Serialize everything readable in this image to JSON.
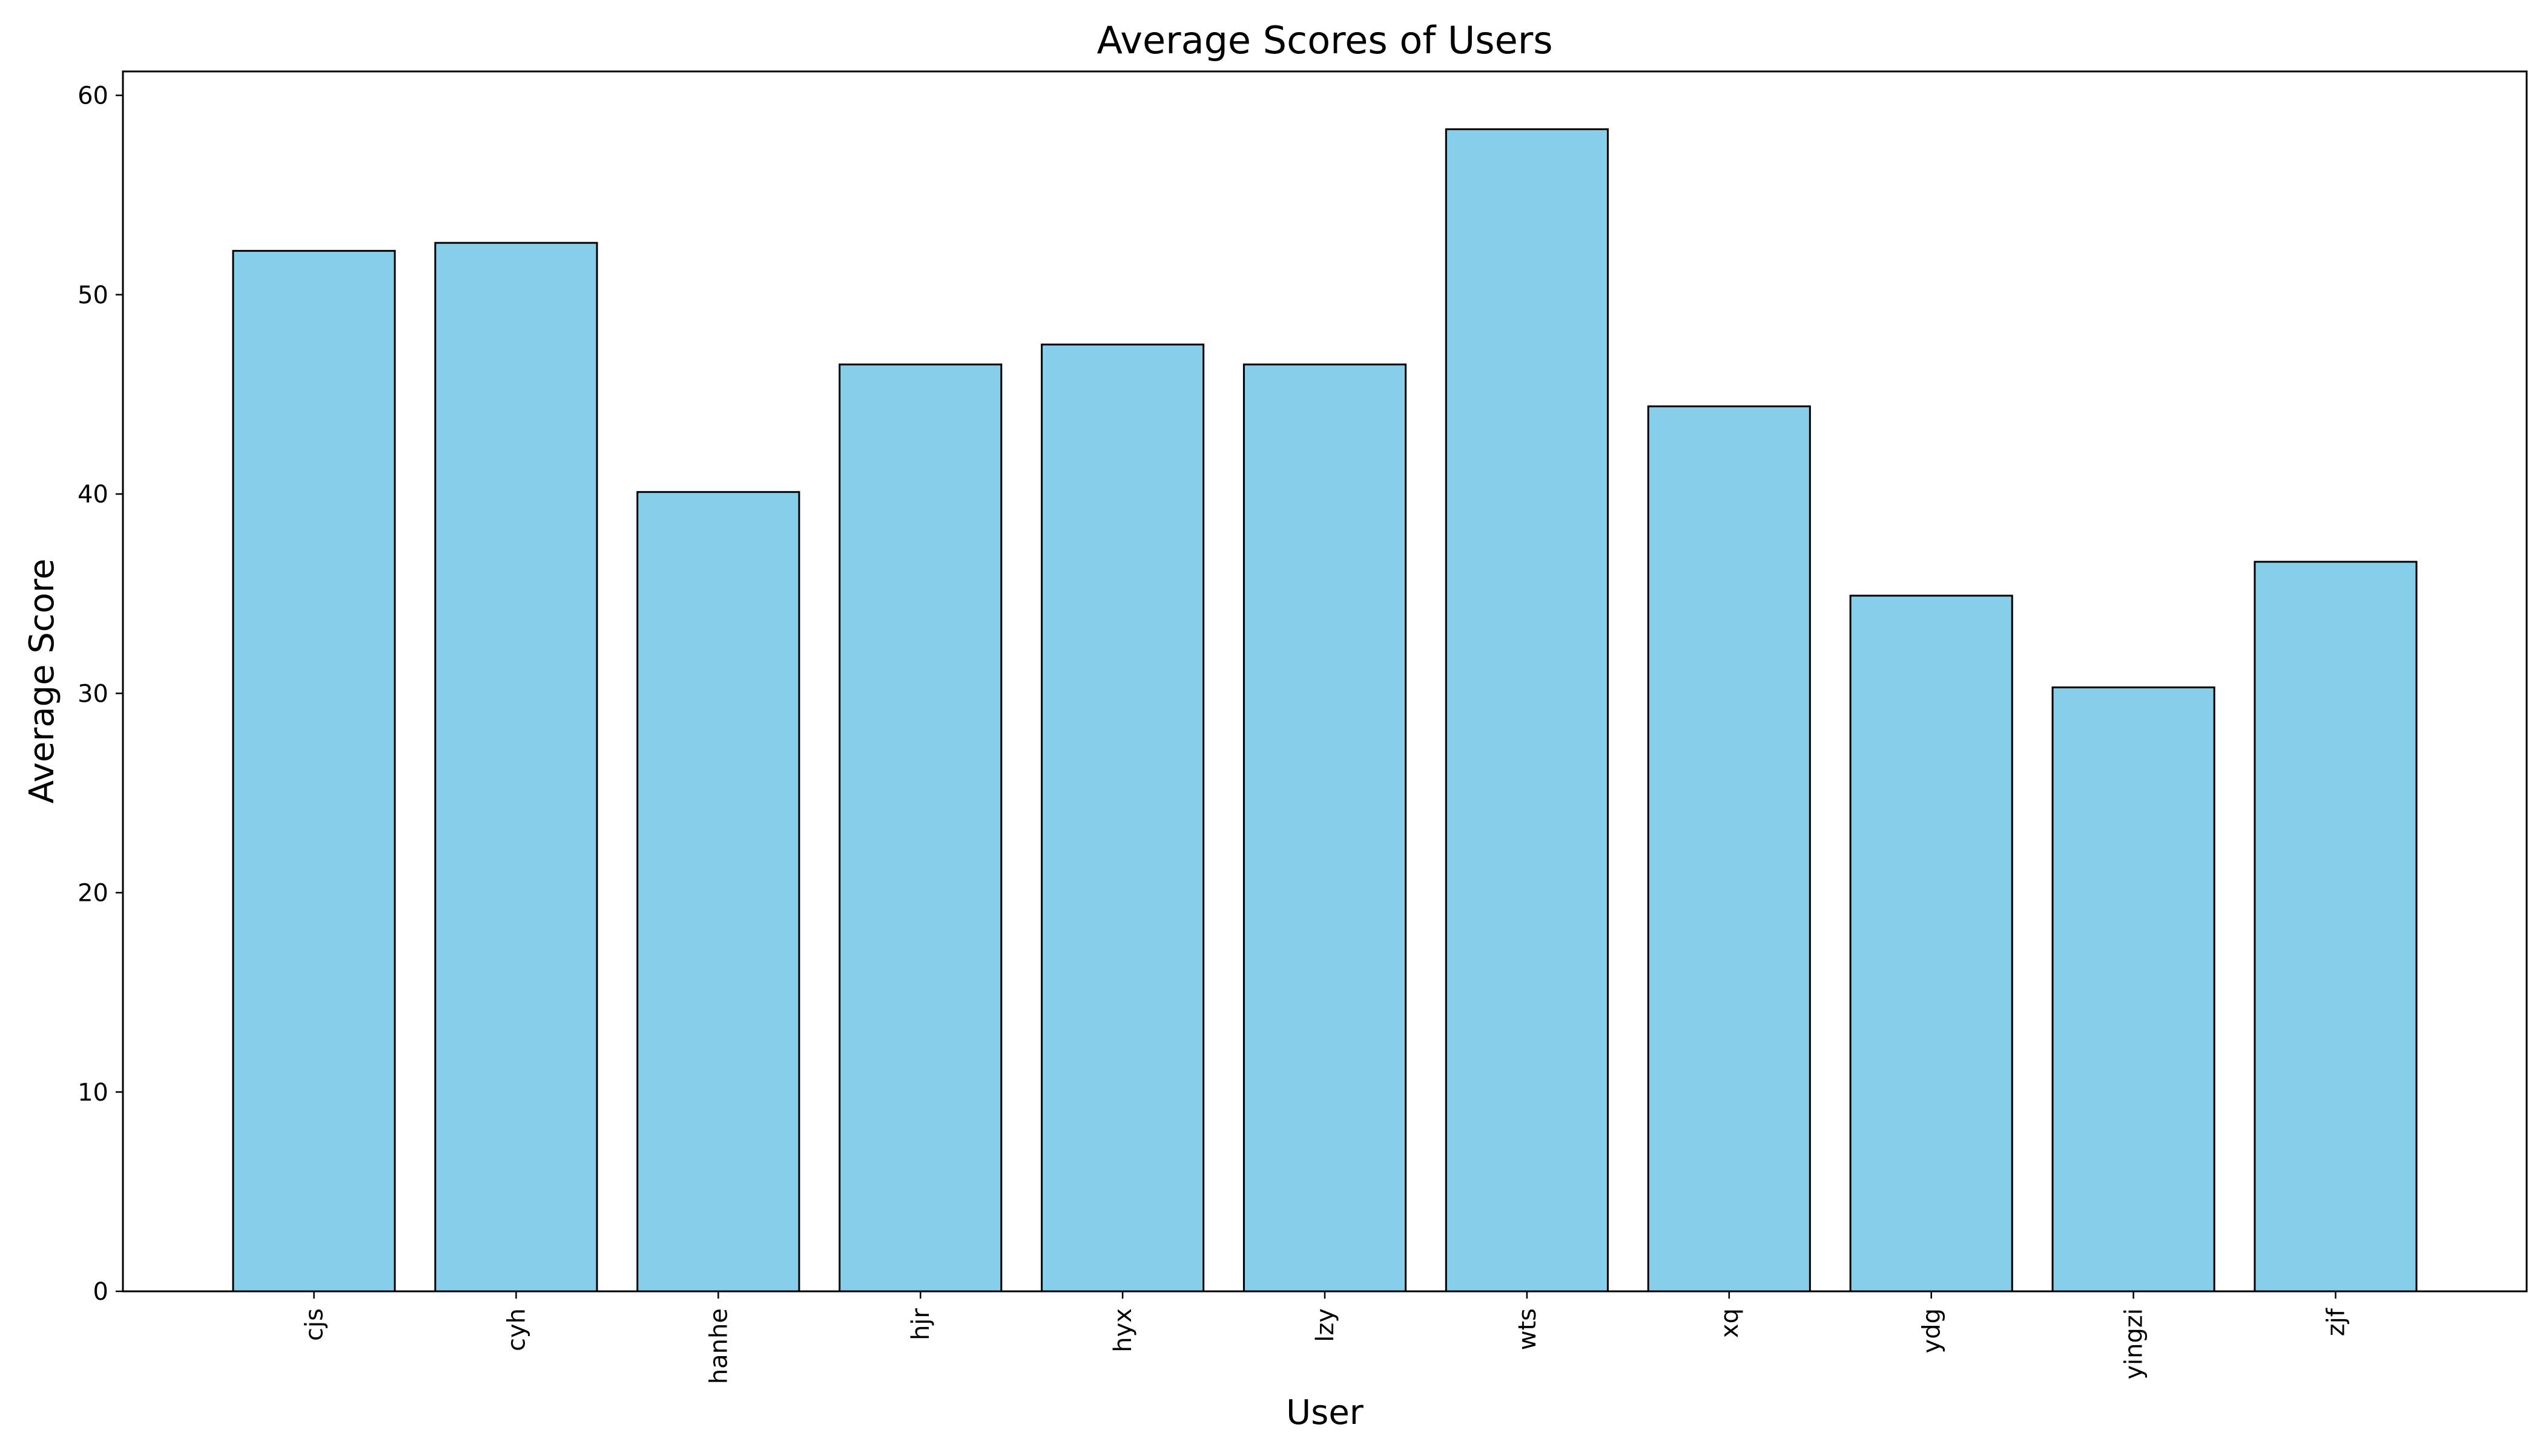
{
  "chart_data": {
    "type": "bar",
    "title": "Average Scores of Users",
    "xlabel": "User",
    "ylabel": "Average Score",
    "categories": [
      "cjs",
      "cyh",
      "hanhe",
      "hjr",
      "hyx",
      "lzy",
      "wts",
      "xq",
      "ydg",
      "yingzi",
      "zjf"
    ],
    "values": [
      52.2,
      52.6,
      40.1,
      46.5,
      47.5,
      46.5,
      58.3,
      44.4,
      34.9,
      30.3,
      36.6
    ],
    "ylim": [
      0,
      61.2
    ],
    "yticks": [
      0,
      10,
      20,
      30,
      40,
      50,
      60
    ],
    "grid": false,
    "legend": "none",
    "colors": {
      "bar_fill": "#87CEEB",
      "bar_edge": "#000000",
      "axes": "#000000"
    }
  }
}
